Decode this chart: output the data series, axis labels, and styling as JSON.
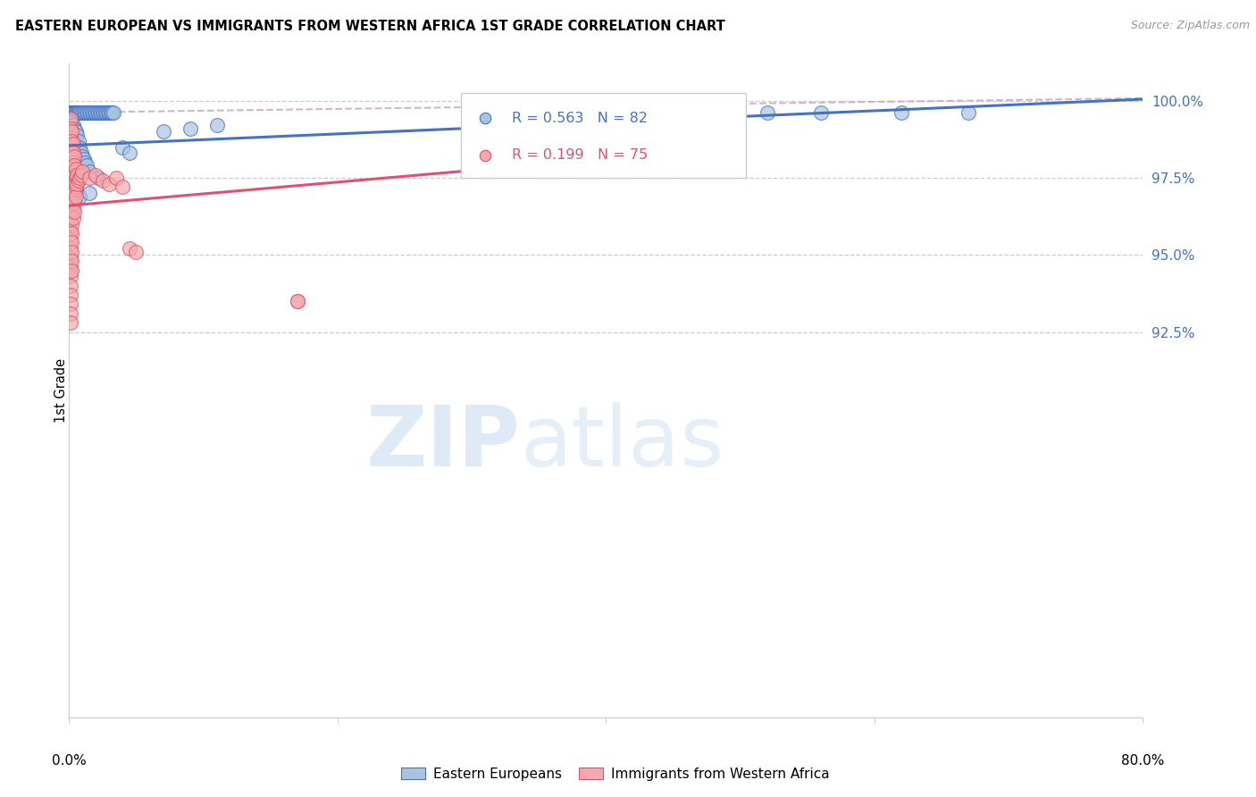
{
  "title": "EASTERN EUROPEAN VS IMMIGRANTS FROM WESTERN AFRICA 1ST GRADE CORRELATION CHART",
  "source": "Source: ZipAtlas.com",
  "ylabel": "1st Grade",
  "right_yticks": [
    100.0,
    97.5,
    95.0,
    92.5
  ],
  "legend_blue_label": "Eastern Europeans",
  "legend_pink_label": "Immigrants from Western Africa",
  "R_blue": 0.563,
  "N_blue": 82,
  "R_pink": 0.199,
  "N_pink": 75,
  "blue_color": "#A8C4E0",
  "pink_color": "#F4AAAA",
  "trend_blue_color": "#4472C4",
  "trend_pink_color": "#E05070",
  "dashed_color": "#C8A8C8",
  "grid_color": "#CCCCCC",
  "right_label_color": "#4472C4",
  "blue_trend_x": [
    0.0,
    0.8
  ],
  "blue_trend_y": [
    98.55,
    100.05
  ],
  "pink_trend_x": [
    0.0,
    0.5
  ],
  "pink_trend_y": [
    96.6,
    98.5
  ],
  "dashed_trend_x": [
    0.0,
    0.8
  ],
  "dashed_trend_y": [
    99.62,
    100.08
  ],
  "xlim": [
    0.0,
    0.8
  ],
  "ylim": [
    80.0,
    101.2
  ],
  "xtick_positions": [
    0.0,
    0.2,
    0.4,
    0.6,
    0.8
  ],
  "blue_scatter": [
    [
      0.001,
      99.62
    ],
    [
      0.001,
      99.62
    ],
    [
      0.002,
      99.62
    ],
    [
      0.002,
      99.62
    ],
    [
      0.003,
      99.62
    ],
    [
      0.003,
      99.62
    ],
    [
      0.004,
      99.62
    ],
    [
      0.004,
      99.62
    ],
    [
      0.005,
      99.62
    ],
    [
      0.005,
      99.62
    ],
    [
      0.006,
      99.62
    ],
    [
      0.006,
      99.62
    ],
    [
      0.007,
      99.62
    ],
    [
      0.007,
      99.62
    ],
    [
      0.008,
      99.62
    ],
    [
      0.009,
      99.62
    ],
    [
      0.01,
      99.62
    ],
    [
      0.011,
      99.62
    ],
    [
      0.012,
      99.62
    ],
    [
      0.013,
      99.62
    ],
    [
      0.014,
      99.62
    ],
    [
      0.015,
      99.62
    ],
    [
      0.016,
      99.62
    ],
    [
      0.017,
      99.62
    ],
    [
      0.018,
      99.62
    ],
    [
      0.019,
      99.62
    ],
    [
      0.02,
      99.62
    ],
    [
      0.021,
      99.62
    ],
    [
      0.022,
      99.62
    ],
    [
      0.023,
      99.62
    ],
    [
      0.024,
      99.62
    ],
    [
      0.025,
      99.62
    ],
    [
      0.026,
      99.62
    ],
    [
      0.027,
      99.62
    ],
    [
      0.028,
      99.62
    ],
    [
      0.029,
      99.62
    ],
    [
      0.03,
      99.62
    ],
    [
      0.031,
      99.62
    ],
    [
      0.032,
      99.62
    ],
    [
      0.033,
      99.62
    ],
    [
      0.001,
      99.3
    ],
    [
      0.001,
      99.1
    ],
    [
      0.001,
      98.9
    ],
    [
      0.002,
      99.0
    ],
    [
      0.002,
      98.7
    ],
    [
      0.003,
      99.2
    ],
    [
      0.003,
      98.8
    ],
    [
      0.004,
      99.1
    ],
    [
      0.004,
      98.6
    ],
    [
      0.005,
      99.0
    ],
    [
      0.005,
      98.5
    ],
    [
      0.006,
      98.9
    ],
    [
      0.007,
      98.7
    ],
    [
      0.008,
      98.5
    ],
    [
      0.009,
      98.3
    ],
    [
      0.01,
      98.2
    ],
    [
      0.011,
      98.1
    ],
    [
      0.012,
      98.0
    ],
    [
      0.013,
      97.9
    ],
    [
      0.015,
      97.7
    ],
    [
      0.001,
      98.2
    ],
    [
      0.001,
      97.8
    ],
    [
      0.001,
      97.5
    ],
    [
      0.002,
      97.6
    ],
    [
      0.003,
      97.4
    ],
    [
      0.004,
      97.2
    ],
    [
      0.006,
      97.0
    ],
    [
      0.008,
      96.9
    ],
    [
      0.015,
      97.0
    ],
    [
      0.022,
      97.5
    ],
    [
      0.04,
      98.5
    ],
    [
      0.045,
      98.3
    ],
    [
      0.07,
      99.0
    ],
    [
      0.09,
      99.1
    ],
    [
      0.11,
      99.2
    ],
    [
      0.35,
      99.62
    ],
    [
      0.4,
      99.62
    ],
    [
      0.45,
      99.62
    ],
    [
      0.52,
      99.62
    ],
    [
      0.56,
      99.62
    ],
    [
      0.62,
      99.62
    ],
    [
      0.67,
      99.62
    ]
  ],
  "pink_scatter": [
    [
      0.001,
      99.4
    ],
    [
      0.001,
      99.1
    ],
    [
      0.001,
      98.8
    ],
    [
      0.001,
      98.5
    ],
    [
      0.001,
      98.2
    ],
    [
      0.001,
      97.9
    ],
    [
      0.001,
      97.6
    ],
    [
      0.001,
      97.3
    ],
    [
      0.001,
      97.0
    ],
    [
      0.001,
      96.7
    ],
    [
      0.001,
      96.4
    ],
    [
      0.001,
      96.1
    ],
    [
      0.001,
      95.8
    ],
    [
      0.001,
      95.5
    ],
    [
      0.001,
      95.2
    ],
    [
      0.001,
      94.9
    ],
    [
      0.001,
      94.6
    ],
    [
      0.001,
      94.3
    ],
    [
      0.001,
      94.0
    ],
    [
      0.001,
      93.7
    ],
    [
      0.001,
      93.4
    ],
    [
      0.001,
      93.1
    ],
    [
      0.001,
      92.8
    ],
    [
      0.002,
      99.0
    ],
    [
      0.002,
      98.7
    ],
    [
      0.002,
      98.4
    ],
    [
      0.002,
      98.1
    ],
    [
      0.002,
      97.8
    ],
    [
      0.002,
      97.5
    ],
    [
      0.002,
      97.2
    ],
    [
      0.002,
      96.9
    ],
    [
      0.002,
      96.6
    ],
    [
      0.002,
      96.3
    ],
    [
      0.002,
      96.0
    ],
    [
      0.002,
      95.7
    ],
    [
      0.002,
      95.4
    ],
    [
      0.002,
      95.1
    ],
    [
      0.002,
      94.8
    ],
    [
      0.002,
      94.5
    ],
    [
      0.003,
      98.6
    ],
    [
      0.003,
      98.3
    ],
    [
      0.003,
      98.0
    ],
    [
      0.003,
      97.7
    ],
    [
      0.003,
      97.4
    ],
    [
      0.003,
      97.1
    ],
    [
      0.003,
      96.8
    ],
    [
      0.003,
      96.5
    ],
    [
      0.003,
      96.2
    ],
    [
      0.004,
      98.2
    ],
    [
      0.004,
      97.9
    ],
    [
      0.004,
      97.6
    ],
    [
      0.004,
      97.3
    ],
    [
      0.004,
      97.0
    ],
    [
      0.004,
      96.7
    ],
    [
      0.004,
      96.4
    ],
    [
      0.005,
      97.8
    ],
    [
      0.005,
      97.5
    ],
    [
      0.005,
      97.2
    ],
    [
      0.005,
      96.9
    ],
    [
      0.006,
      97.6
    ],
    [
      0.006,
      97.3
    ],
    [
      0.007,
      97.4
    ],
    [
      0.008,
      97.5
    ],
    [
      0.009,
      97.6
    ],
    [
      0.01,
      97.7
    ],
    [
      0.015,
      97.5
    ],
    [
      0.02,
      97.6
    ],
    [
      0.025,
      97.4
    ],
    [
      0.03,
      97.3
    ],
    [
      0.035,
      97.5
    ],
    [
      0.04,
      97.2
    ],
    [
      0.045,
      95.2
    ],
    [
      0.05,
      95.1
    ],
    [
      0.17,
      93.5
    ],
    [
      0.17,
      93.5
    ]
  ]
}
